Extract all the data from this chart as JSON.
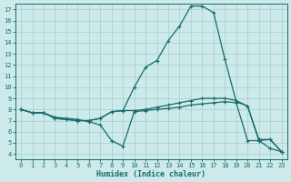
{
  "bg_color": "#cceaea",
  "line_color": "#1a6b6b",
  "grid_color": "#aacccc",
  "xlabel": "Humidex (Indice chaleur)",
  "xlim": [
    -0.5,
    23.5
  ],
  "ylim": [
    3.5,
    17.5
  ],
  "yticks": [
    4,
    5,
    6,
    7,
    8,
    9,
    10,
    11,
    12,
    13,
    14,
    15,
    16,
    17
  ],
  "xticks": [
    0,
    1,
    2,
    3,
    4,
    5,
    6,
    7,
    8,
    9,
    10,
    11,
    12,
    13,
    14,
    15,
    16,
    17,
    18,
    19,
    20,
    21,
    22,
    23
  ],
  "line1_x": [
    0,
    1,
    2,
    3,
    4,
    5,
    6,
    7,
    8,
    9,
    10,
    11,
    12,
    13,
    14,
    15,
    16,
    17,
    18,
    19,
    20,
    21,
    22,
    23
  ],
  "line1_y": [
    8.0,
    7.7,
    7.7,
    7.3,
    7.2,
    7.1,
    6.9,
    6.6,
    5.2,
    4.7,
    7.8,
    7.9,
    8.0,
    8.1,
    8.2,
    8.4,
    8.5,
    8.6,
    8.7,
    8.6,
    5.2,
    5.2,
    4.5,
    4.2
  ],
  "line2_x": [
    0,
    1,
    2,
    3,
    4,
    5,
    6,
    7,
    8,
    9,
    10,
    11,
    12,
    13,
    14,
    15,
    16,
    17,
    18,
    19,
    20,
    21,
    22,
    23
  ],
  "line2_y": [
    8.0,
    7.7,
    7.7,
    7.2,
    7.1,
    7.0,
    7.0,
    7.2,
    7.8,
    7.9,
    7.9,
    8.0,
    8.2,
    8.4,
    8.6,
    8.8,
    9.0,
    9.0,
    9.0,
    8.8,
    8.3,
    5.2,
    5.3,
    4.2
  ],
  "line3_x": [
    0,
    1,
    2,
    3,
    4,
    5,
    6,
    7,
    8,
    9,
    10,
    11,
    12,
    13,
    14,
    15,
    16,
    17,
    18,
    19,
    20,
    21,
    22,
    23
  ],
  "line3_y": [
    8.0,
    7.7,
    7.7,
    7.2,
    7.1,
    7.0,
    7.0,
    7.2,
    7.8,
    7.9,
    10.0,
    11.8,
    12.4,
    14.2,
    15.5,
    17.3,
    17.3,
    16.7,
    12.5,
    8.7,
    8.3,
    5.3,
    5.3,
    4.2
  ],
  "marker": "+",
  "markersize": 3.0,
  "linewidth": 0.9,
  "title_fontsize": 7,
  "xlabel_fontsize": 6,
  "tick_fontsize": 5
}
